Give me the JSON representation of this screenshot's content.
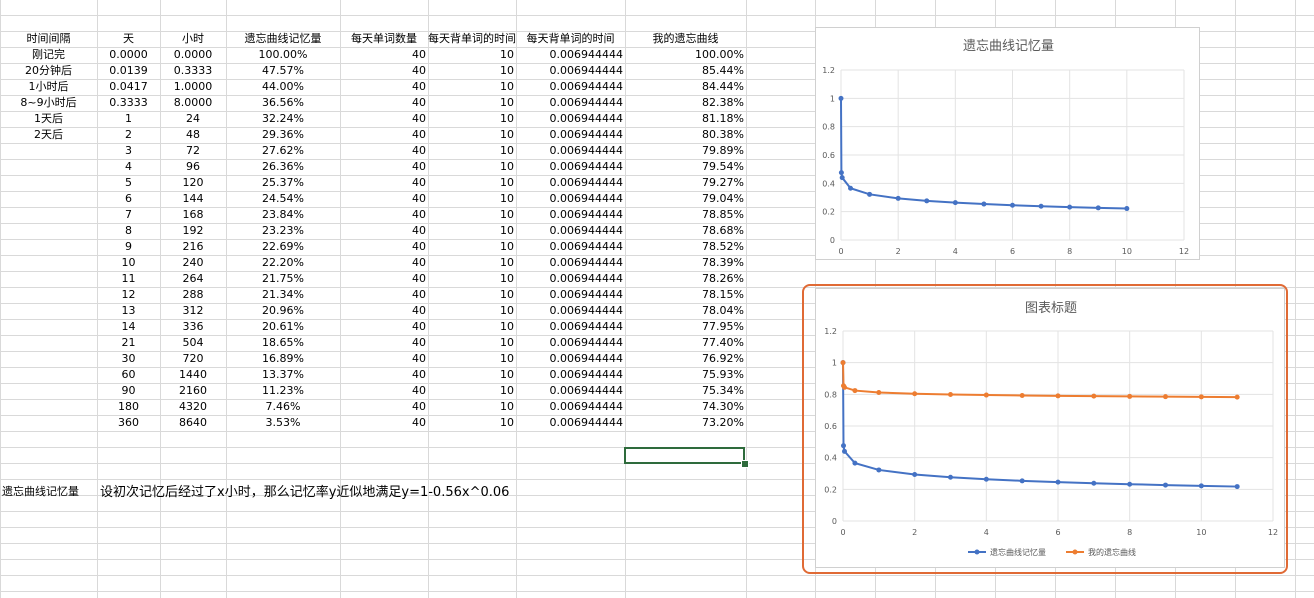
{
  "headers": [
    "时间间隔",
    "天",
    "小时",
    "遗忘曲线记忆量",
    "每天单词数量",
    "每天背单词的时间",
    "每天背单词的时间",
    "我的遗忘曲线"
  ],
  "rows": [
    [
      "刚记完",
      "0.0000",
      "0.0000",
      "100.00%",
      "40",
      "10",
      "0.006944444",
      "100.00%"
    ],
    [
      "20分钟后",
      "0.0139",
      "0.3333",
      "47.57%",
      "40",
      "10",
      "0.006944444",
      "85.44%"
    ],
    [
      "1小时后",
      "0.0417",
      "1.0000",
      "44.00%",
      "40",
      "10",
      "0.006944444",
      "84.44%"
    ],
    [
      "8~9小时后",
      "0.3333",
      "8.0000",
      "36.56%",
      "40",
      "10",
      "0.006944444",
      "82.38%"
    ],
    [
      "1天后",
      "1",
      "24",
      "32.24%",
      "40",
      "10",
      "0.006944444",
      "81.18%"
    ],
    [
      "2天后",
      "2",
      "48",
      "29.36%",
      "40",
      "10",
      "0.006944444",
      "80.38%"
    ],
    [
      "",
      "3",
      "72",
      "27.62%",
      "40",
      "10",
      "0.006944444",
      "79.89%"
    ],
    [
      "",
      "4",
      "96",
      "26.36%",
      "40",
      "10",
      "0.006944444",
      "79.54%"
    ],
    [
      "",
      "5",
      "120",
      "25.37%",
      "40",
      "10",
      "0.006944444",
      "79.27%"
    ],
    [
      "",
      "6",
      "144",
      "24.54%",
      "40",
      "10",
      "0.006944444",
      "79.04%"
    ],
    [
      "",
      "7",
      "168",
      "23.84%",
      "40",
      "10",
      "0.006944444",
      "78.85%"
    ],
    [
      "",
      "8",
      "192",
      "23.23%",
      "40",
      "10",
      "0.006944444",
      "78.68%"
    ],
    [
      "",
      "9",
      "216",
      "22.69%",
      "40",
      "10",
      "0.006944444",
      "78.52%"
    ],
    [
      "",
      "10",
      "240",
      "22.20%",
      "40",
      "10",
      "0.006944444",
      "78.39%"
    ],
    [
      "",
      "11",
      "264",
      "21.75%",
      "40",
      "10",
      "0.006944444",
      "78.26%"
    ],
    [
      "",
      "12",
      "288",
      "21.34%",
      "40",
      "10",
      "0.006944444",
      "78.15%"
    ],
    [
      "",
      "13",
      "312",
      "20.96%",
      "40",
      "10",
      "0.006944444",
      "78.04%"
    ],
    [
      "",
      "14",
      "336",
      "20.61%",
      "40",
      "10",
      "0.006944444",
      "77.95%"
    ],
    [
      "",
      "21",
      "504",
      "18.65%",
      "40",
      "10",
      "0.006944444",
      "77.40%"
    ],
    [
      "",
      "30",
      "720",
      "16.89%",
      "40",
      "10",
      "0.006944444",
      "76.92%"
    ],
    [
      "",
      "60",
      "1440",
      "13.37%",
      "40",
      "10",
      "0.006944444",
      "75.93%"
    ],
    [
      "",
      "90",
      "2160",
      "11.23%",
      "40",
      "10",
      "0.006944444",
      "75.34%"
    ],
    [
      "",
      "180",
      "4320",
      "7.46%",
      "40",
      "10",
      "0.006944444",
      "74.30%"
    ],
    [
      "",
      "360",
      "8640",
      "3.53%",
      "40",
      "10",
      "0.006944444",
      "73.20%"
    ]
  ],
  "note_label": "遗忘曲线记忆量",
  "note_formula": "设初次记忆后经过了x小时，那么记忆率y近似地满足y=1-0.56x^0.06",
  "colors": {
    "series_blue": "#4472c4",
    "series_orange": "#ed7d31",
    "highlight": "#e06a35"
  },
  "chart_data": [
    {
      "type": "scatter",
      "title": "遗忘曲线记忆量",
      "xlim": [
        0,
        12
      ],
      "ylim": [
        0,
        1.2
      ],
      "x_ticks": [
        0,
        2,
        4,
        6,
        8,
        10,
        12
      ],
      "y_ticks": [
        0,
        0.2,
        0.4,
        0.6,
        0.8,
        1,
        1.2
      ],
      "grid": true,
      "legend": "none",
      "series": [
        {
          "x": [
            0,
            0.0139,
            0.0417,
            0.3333,
            1,
            2,
            3,
            4,
            5,
            6,
            7,
            8,
            9,
            10
          ],
          "y": [
            1.0,
            0.4757,
            0.44,
            0.3656,
            0.3224,
            0.2936,
            0.2762,
            0.2636,
            0.2537,
            0.2454,
            0.2384,
            0.2323,
            0.2269,
            0.222
          ],
          "color": "#4472c4"
        }
      ]
    },
    {
      "type": "scatter",
      "title": "图表标题",
      "xlim": [
        0,
        12
      ],
      "ylim": [
        0,
        1.2
      ],
      "x_ticks": [
        0,
        2,
        4,
        6,
        8,
        10,
        12
      ],
      "y_ticks": [
        0,
        0.2,
        0.4,
        0.6,
        0.8,
        1,
        1.2
      ],
      "grid": true,
      "legend": "bottom",
      "series": [
        {
          "name": "遗忘曲线记忆量",
          "x": [
            0,
            0.0139,
            0.0417,
            0.3333,
            1,
            2,
            3,
            4,
            5,
            6,
            7,
            8,
            9,
            10,
            11
          ],
          "y": [
            1.0,
            0.4757,
            0.44,
            0.3656,
            0.3224,
            0.2936,
            0.2762,
            0.2636,
            0.2537,
            0.2454,
            0.2384,
            0.2323,
            0.2269,
            0.222,
            0.2175
          ],
          "color": "#4472c4"
        },
        {
          "name": "我的遗忘曲线",
          "x": [
            0,
            0.0139,
            0.0417,
            0.3333,
            1,
            2,
            3,
            4,
            5,
            6,
            7,
            8,
            9,
            10,
            11
          ],
          "y": [
            1.0,
            0.8544,
            0.8444,
            0.8238,
            0.8118,
            0.8038,
            0.7989,
            0.7954,
            0.7927,
            0.7904,
            0.7885,
            0.7868,
            0.7852,
            0.7839,
            0.7826
          ],
          "color": "#ed7d31"
        }
      ]
    }
  ]
}
